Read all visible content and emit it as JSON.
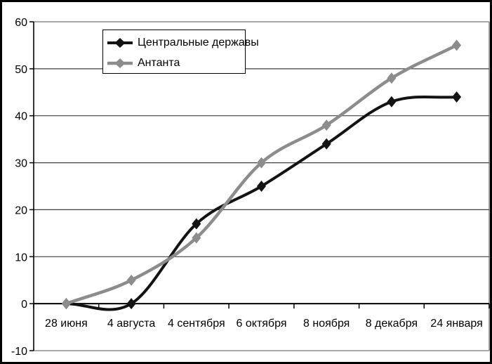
{
  "chart_data": {
    "type": "line",
    "title": "",
    "xlabel": "",
    "ylabel": "",
    "categories": [
      "28 июня",
      "4 августа",
      "4 сентября",
      "6 октября",
      "8 ноября",
      "8 декабря",
      "24 января"
    ],
    "series": [
      {
        "name": "Центральные державы",
        "color": "#131313",
        "values": [
          0,
          0,
          17,
          25,
          34,
          43,
          44
        ]
      },
      {
        "name": "Антанта",
        "color": "#8c8c8c",
        "values": [
          0,
          5,
          14,
          30,
          38,
          48,
          55
        ]
      }
    ],
    "ylim": [
      -10,
      60
    ],
    "yticks": [
      60,
      50,
      40,
      30,
      20,
      10,
      0,
      -10
    ],
    "grid": true,
    "smoothed": true,
    "marker": "diamond",
    "legend_position": "top-left-inside"
  },
  "colors": {
    "background": "#ffffff",
    "frame_border": "#000000",
    "plot_border": "#8c8c8c",
    "gridline": "#404040",
    "axis": "#000000",
    "tick_label": "#000000"
  }
}
